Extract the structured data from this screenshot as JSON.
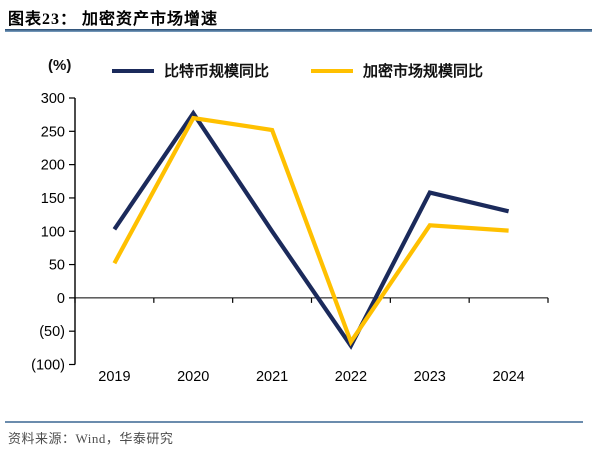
{
  "header": {
    "title": "图表23：  加密资产市场增速"
  },
  "footer": {
    "source": "资料来源：Wind，华泰研究"
  },
  "colors": {
    "bitcoin_line": "#1B2A5B",
    "crypto_line": "#FFC000",
    "rule_blue": "#44719F",
    "axis": "#000000",
    "footer_text": "#4D4D4D"
  },
  "chart_data": {
    "type": "line",
    "unit_label": "(%)",
    "categories": [
      "2019",
      "2020",
      "2021",
      "2022",
      "2023",
      "2024"
    ],
    "series": [
      {
        "name": "比特币规模同比",
        "color": "#1B2A5B",
        "values": [
          103,
          277,
          100,
          -72,
          158,
          130
        ]
      },
      {
        "name": "加密市场规模同比",
        "color": "#FFC000",
        "values": [
          52,
          270,
          252,
          -66,
          109,
          101
        ]
      }
    ],
    "ylim": [
      -100,
      300
    ],
    "ytick_step": 50,
    "ytick_labels_top_to_bottom": [
      "300",
      "250",
      "200",
      "150",
      "100",
      "50",
      "0",
      "(50)",
      "(100)"
    ],
    "negative_label_format": "parentheses",
    "legend_position": "top",
    "grid": false,
    "zero_line": true
  }
}
